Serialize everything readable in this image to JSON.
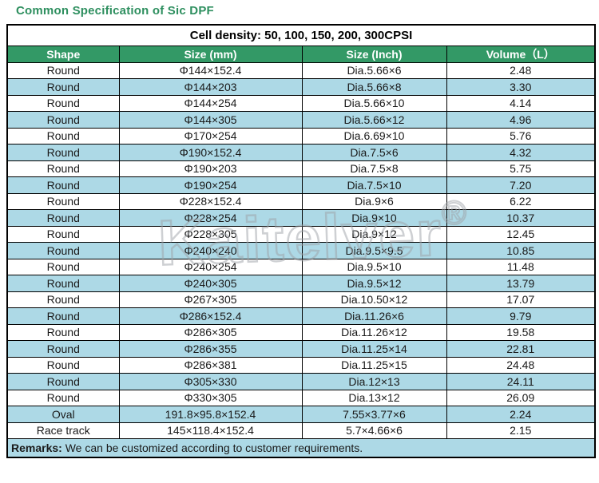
{
  "page": {
    "title": "Common Specification of Sic DPF"
  },
  "table": {
    "cell_density": "Cell density: 50, 100, 150, 200, 300CPSI",
    "columns": [
      "Shape",
      "Size (mm)",
      "Size (Inch)",
      "Volume（L）"
    ],
    "rows": [
      {
        "shape": "Round",
        "size_mm": "Φ144×152.4",
        "size_inch": "Dia.5.66×6",
        "volume": "2.48"
      },
      {
        "shape": "Round",
        "size_mm": "Φ144×203",
        "size_inch": "Dia.5.66×8",
        "volume": "3.30"
      },
      {
        "shape": "Round",
        "size_mm": "Φ144×254",
        "size_inch": "Dia.5.66×10",
        "volume": "4.14"
      },
      {
        "shape": "Round",
        "size_mm": "Φ144×305",
        "size_inch": "Dia.5.66×12",
        "volume": "4.96"
      },
      {
        "shape": "Round",
        "size_mm": "Φ170×254",
        "size_inch": "Dia.6.69×10",
        "volume": "5.76"
      },
      {
        "shape": "Round",
        "size_mm": "Φ190×152.4",
        "size_inch": "Dia.7.5×6",
        "volume": "4.32"
      },
      {
        "shape": "Round",
        "size_mm": "Φ190×203",
        "size_inch": "Dia.7.5×8",
        "volume": "5.75"
      },
      {
        "shape": "Round",
        "size_mm": "Φ190×254",
        "size_inch": "Dia.7.5×10",
        "volume": "7.20"
      },
      {
        "shape": "Round",
        "size_mm": "Φ228×152.4",
        "size_inch": "Dia.9×6",
        "volume": "6.22"
      },
      {
        "shape": "Round",
        "size_mm": "Φ228×254",
        "size_inch": "Dia.9×10",
        "volume": "10.37"
      },
      {
        "shape": "Round",
        "size_mm": "Φ228×305",
        "size_inch": "Dia.9×12",
        "volume": "12.45"
      },
      {
        "shape": "Round",
        "size_mm": "Φ240×240",
        "size_inch": "Dia.9.5×9.5",
        "volume": "10.85"
      },
      {
        "shape": "Round",
        "size_mm": "Φ240×254",
        "size_inch": "Dia.9.5×10",
        "volume": "11.48"
      },
      {
        "shape": "Round",
        "size_mm": "Φ240×305",
        "size_inch": "Dia.9.5×12",
        "volume": "13.79"
      },
      {
        "shape": "Round",
        "size_mm": "Φ267×305",
        "size_inch": "Dia.10.50×12",
        "volume": "17.07"
      },
      {
        "shape": "Round",
        "size_mm": "Φ286×152.4",
        "size_inch": "Dia.11.26×6",
        "volume": "9.79"
      },
      {
        "shape": "Round",
        "size_mm": "Φ286×305",
        "size_inch": "Dia.11.26×12",
        "volume": "19.58"
      },
      {
        "shape": "Round",
        "size_mm": "Φ286×355",
        "size_inch": "Dia.11.25×14",
        "volume": "22.81"
      },
      {
        "shape": "Round",
        "size_mm": "Φ286×381",
        "size_inch": "Dia.11.25×15",
        "volume": "24.48"
      },
      {
        "shape": "Round",
        "size_mm": "Φ305×330",
        "size_inch": "Dia.12×13",
        "volume": "24.11"
      },
      {
        "shape": "Round",
        "size_mm": "Φ330×305",
        "size_inch": "Dia.13×12",
        "volume": "26.09"
      },
      {
        "shape": "Oval",
        "size_mm": "191.8×95.8×152.4",
        "size_inch": "7.55×3.77×6",
        "volume": "2.24"
      },
      {
        "shape": "Race track",
        "size_mm": "145×118.4×152.4",
        "size_inch": "5.7×4.66×6",
        "volume": "2.15"
      }
    ],
    "remarks_label": "Remarks:",
    "remarks_text": " We can be customized according to customer requirements."
  },
  "watermark": {
    "text": "Kaitelver",
    "symbol": "®"
  },
  "colors": {
    "title_green": "#2e8f5f",
    "header_green": "#339966",
    "row_blue": "#add9e6",
    "border": "#000000"
  }
}
